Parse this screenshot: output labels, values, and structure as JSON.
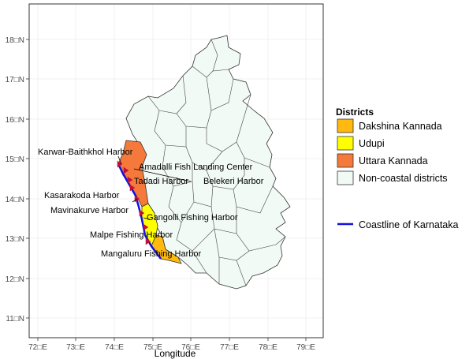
{
  "map": {
    "xlabel": "Longitude",
    "x_ticks": [
      "72□E",
      "73□E",
      "74□E",
      "75□E",
      "76□E",
      "77□E",
      "78□E",
      "79□E"
    ],
    "y_ticks": [
      "11□N",
      "12□N",
      "13□N",
      "14□N",
      "15□N",
      "16□N",
      "17□N",
      "18□N"
    ],
    "harbors": [
      "Karwar-Baithkhol Harbor",
      "Amadalli Fish Landing Center",
      "Tadadi Harbor",
      "Belekeri Harbor",
      "Kasarakoda Harbor",
      "Mavinakurve Harbor",
      "Gangolli Fishing Harbor",
      "Malpe Fishing Harbor",
      "Mangaluru Fishing Harbor"
    ]
  },
  "legend": {
    "title": "Districts",
    "items": [
      {
        "label": "Dakshina Kannada",
        "color": "#FFB90F"
      },
      {
        "label": "Udupi",
        "color": "#FFFF00"
      },
      {
        "label": "Uttara Kannada",
        "color": "#F4793A"
      },
      {
        "label": "Non-coastal districts",
        "color": "#F2FAF6"
      }
    ],
    "coastline": {
      "label": "Coastline of Karnataka",
      "color": "#1010E0"
    }
  },
  "colors": {
    "harbor_marker": "#C0103A",
    "grid": "#E6E6E6",
    "border": "#333333"
  }
}
